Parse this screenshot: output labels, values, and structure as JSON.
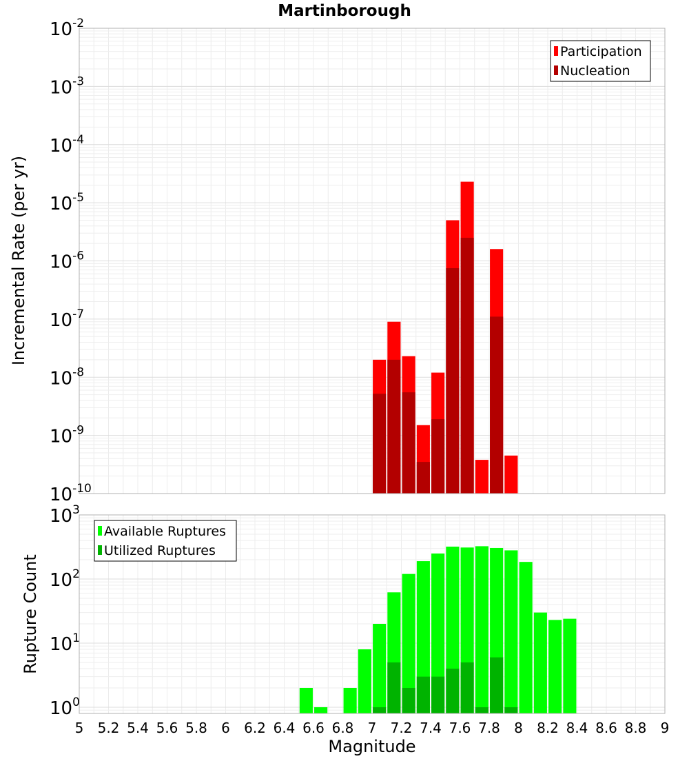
{
  "chart_data": [
    {
      "type": "bar",
      "title": "Martinborough",
      "xlabel": "",
      "ylabel": "Incremental Rate (per yr)",
      "yscale": "log",
      "ylim": [
        1e-10,
        0.01
      ],
      "xlim": [
        5,
        9
      ],
      "bar_width": 0.1,
      "y_ticks": [
        {
          "base": "10",
          "exp": "-10"
        },
        {
          "base": "10",
          "exp": "-9"
        },
        {
          "base": "10",
          "exp": "-8"
        },
        {
          "base": "10",
          "exp": "-7"
        },
        {
          "base": "10",
          "exp": "-6"
        },
        {
          "base": "10",
          "exp": "-5"
        },
        {
          "base": "10",
          "exp": "-4"
        },
        {
          "base": "10",
          "exp": "-3"
        },
        {
          "base": "10",
          "exp": "-2"
        }
      ],
      "grid": true,
      "legend_position": "top-right",
      "series": [
        {
          "name": "Participation",
          "color": "#ff0000",
          "points": [
            {
              "x": 7.05,
              "y": 2e-08
            },
            {
              "x": 7.15,
              "y": 9e-08
            },
            {
              "x": 7.25,
              "y": 2.3e-08
            },
            {
              "x": 7.35,
              "y": 1.5e-09
            },
            {
              "x": 7.45,
              "y": 1.2e-08
            },
            {
              "x": 7.55,
              "y": 5e-06
            },
            {
              "x": 7.65,
              "y": 2.3e-05
            },
            {
              "x": 7.75,
              "y": 3.8e-10
            },
            {
              "x": 7.85,
              "y": 1.6e-06
            },
            {
              "x": 7.95,
              "y": 4.5e-10
            }
          ]
        },
        {
          "name": "Nucleation",
          "color": "#b30000",
          "points": [
            {
              "x": 7.05,
              "y": 5.2e-09
            },
            {
              "x": 7.15,
              "y": 2e-08
            },
            {
              "x": 7.25,
              "y": 5.5e-09
            },
            {
              "x": 7.35,
              "y": 3.5e-10
            },
            {
              "x": 7.45,
              "y": 1.9e-09
            },
            {
              "x": 7.55,
              "y": 7.5e-07
            },
            {
              "x": 7.65,
              "y": 2.5e-06
            },
            {
              "x": 7.85,
              "y": 1.1e-07
            }
          ]
        }
      ]
    },
    {
      "type": "bar",
      "title": "",
      "xlabel": "Magnitude",
      "ylabel": "Rupture Count",
      "yscale": "log",
      "ylim": [
        0.8,
        1000
      ],
      "xlim": [
        5,
        9
      ],
      "bar_width": 0.1,
      "x_ticks": [
        "5",
        "5.2",
        "5.4",
        "5.6",
        "5.8",
        "6",
        "6.2",
        "6.4",
        "6.6",
        "6.8",
        "7",
        "7.2",
        "7.4",
        "7.6",
        "7.8",
        "8",
        "8.2",
        "8.4",
        "8.6",
        "8.8",
        "9"
      ],
      "y_ticks": [
        {
          "base": "10",
          "exp": "0"
        },
        {
          "base": "10",
          "exp": "1"
        },
        {
          "base": "10",
          "exp": "2"
        },
        {
          "base": "10",
          "exp": "3"
        }
      ],
      "grid": true,
      "legend_position": "top-left",
      "series": [
        {
          "name": "Available Ruptures",
          "color": "#00ff00",
          "points": [
            {
              "x": 6.55,
              "y": 2
            },
            {
              "x": 6.65,
              "y": 1
            },
            {
              "x": 6.85,
              "y": 2
            },
            {
              "x": 6.95,
              "y": 8
            },
            {
              "x": 7.05,
              "y": 20
            },
            {
              "x": 7.15,
              "y": 62
            },
            {
              "x": 7.25,
              "y": 120
            },
            {
              "x": 7.35,
              "y": 190
            },
            {
              "x": 7.45,
              "y": 250
            },
            {
              "x": 7.55,
              "y": 320
            },
            {
              "x": 7.65,
              "y": 310
            },
            {
              "x": 7.75,
              "y": 325
            },
            {
              "x": 7.85,
              "y": 305
            },
            {
              "x": 7.95,
              "y": 280
            },
            {
              "x": 8.05,
              "y": 185
            },
            {
              "x": 8.15,
              "y": 30
            },
            {
              "x": 8.25,
              "y": 23
            },
            {
              "x": 8.35,
              "y": 24
            }
          ]
        },
        {
          "name": "Utilized Ruptures",
          "color": "#00b300",
          "points": [
            {
              "x": 7.05,
              "y": 1
            },
            {
              "x": 7.15,
              "y": 5
            },
            {
              "x": 7.25,
              "y": 2
            },
            {
              "x": 7.35,
              "y": 3
            },
            {
              "x": 7.45,
              "y": 3
            },
            {
              "x": 7.55,
              "y": 4
            },
            {
              "x": 7.65,
              "y": 5
            },
            {
              "x": 7.75,
              "y": 1
            },
            {
              "x": 7.85,
              "y": 6
            },
            {
              "x": 7.95,
              "y": 1
            }
          ]
        }
      ]
    }
  ]
}
